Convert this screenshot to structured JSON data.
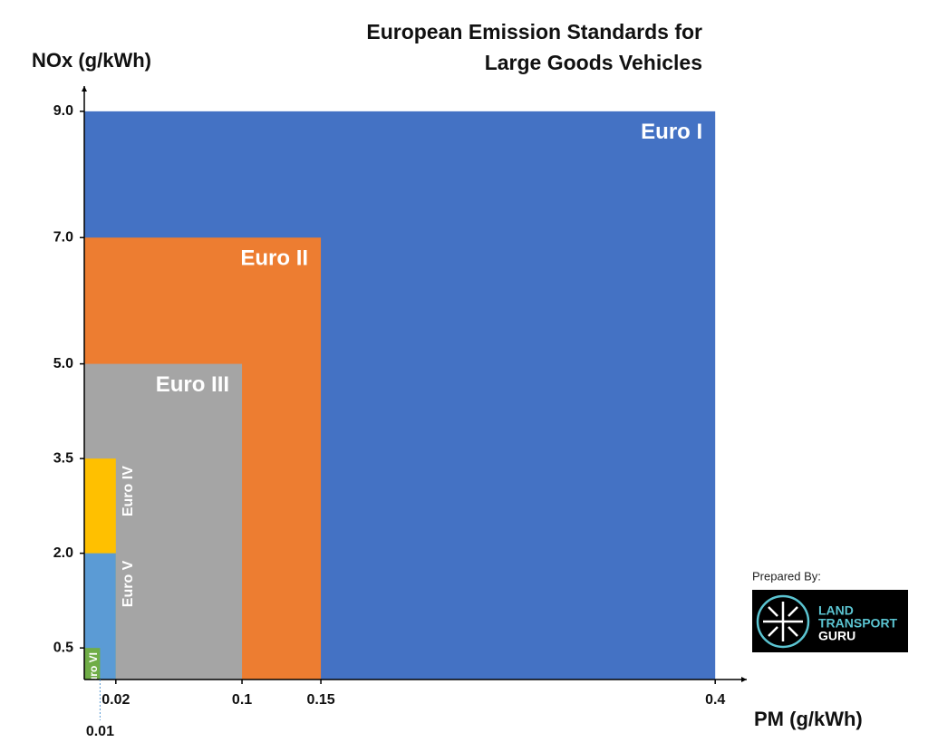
{
  "chart_data": {
    "type": "nested-rect",
    "title": "European Emission Standards for Large Goods Vehicles",
    "x_label": "PM (g/kWh)",
    "y_label": "NOx (g/kWh)",
    "xlim": [
      0,
      0.42
    ],
    "ylim": [
      0,
      9.4
    ],
    "xticks": [
      0.01,
      0.02,
      0.1,
      0.15,
      0.4
    ],
    "yticks": [
      {
        "value": 0.5,
        "label": "0.5"
      },
      {
        "value": 2,
        "label": "2.0"
      },
      {
        "value": 3.5,
        "label": "3.5"
      },
      {
        "value": 5,
        "label": "5.0"
      },
      {
        "value": 7,
        "label": "7.0"
      },
      {
        "value": 9,
        "label": "9.0"
      }
    ],
    "series": [
      {
        "name": "Euro I",
        "color": "#4472c4",
        "pm": 0.4,
        "nox": 9
      },
      {
        "name": "Euro II",
        "color": "#ed7d31",
        "pm": 0.15,
        "nox": 7
      },
      {
        "name": "Euro III",
        "color": "#a5a5a5",
        "pm": 0.1,
        "nox": 5
      },
      {
        "name": "Euro IV",
        "color": "#ffc000",
        "pm": 0.02,
        "nox": 3.5
      },
      {
        "name": "Euro V",
        "color": "#5b9bd5",
        "pm": 0.02,
        "nox": 2
      },
      {
        "name": "Euro VI",
        "color": "#70ad47",
        "pm": 0.01,
        "nox": 0.5
      }
    ]
  },
  "credit": {
    "label": "Prepared By:",
    "logo": [
      "LAND",
      "TRANSPORT",
      "GURU"
    ]
  }
}
